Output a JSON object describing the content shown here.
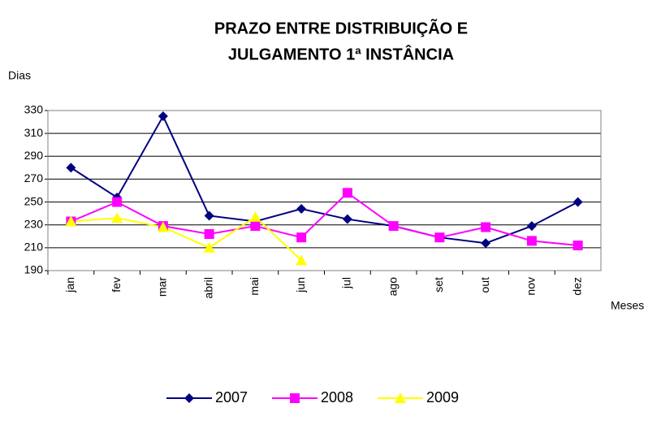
{
  "chart_data": {
    "type": "line",
    "title": [
      "PRAZO ENTRE DISTRIBUIÇÃO E",
      "JULGAMENTO 1ª INSTÂNCIA"
    ],
    "y_label": "Dias",
    "x_label": "Meses",
    "categories": [
      "jan",
      "fev",
      "mar",
      "abril",
      "mai",
      "jun",
      "jul",
      "ago",
      "set",
      "out",
      "nov",
      "dez"
    ],
    "series": [
      {
        "name": "2007",
        "color": "#000080",
        "marker": "diamond",
        "values": [
          280,
          254,
          325,
          238,
          233,
          244,
          235,
          229,
          219,
          214,
          229,
          250
        ]
      },
      {
        "name": "2008",
        "color": "#ff00ff",
        "marker": "square",
        "values": [
          233,
          250,
          229,
          222,
          229,
          219,
          258,
          229,
          219,
          228,
          216,
          212
        ]
      },
      {
        "name": "2009",
        "color": "#ffff00",
        "marker": "triangle",
        "values": [
          233,
          236,
          228,
          210,
          237,
          199,
          null,
          null,
          null,
          null,
          null,
          null
        ]
      }
    ],
    "ylim": [
      190,
      330
    ],
    "yticks": [
      190,
      210,
      230,
      250,
      270,
      290,
      310,
      330
    ],
    "grid": true,
    "legend": "bottom"
  }
}
